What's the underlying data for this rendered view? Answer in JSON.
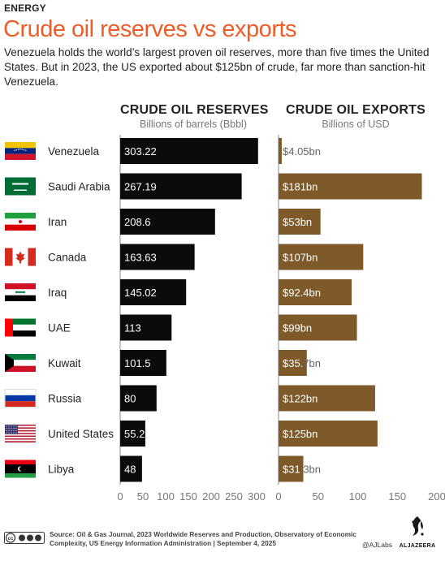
{
  "header": {
    "kicker": "ENERGY",
    "title": "Crude oil reserves vs exports",
    "subtitle": "Venezuela holds the world’s largest proven oil reserves, more than five times the United States. But in 2023, the US exported about $125bn of crude, far more than sanction-hit Venezuela."
  },
  "colors": {
    "title": "#ee5d28",
    "reserves_bar": "#0b0b0b",
    "exports_bar": "#7e5a2a",
    "axis": "#8a8a8a"
  },
  "chart_data": [
    {
      "type": "bar",
      "orientation": "horizontal",
      "title": "CRUDE OIL RESERVES",
      "subtitle": "Billions of barrels (Bbbl)",
      "categories": [
        "Venezuela",
        "Saudi Arabia",
        "Iran",
        "Canada",
        "Iraq",
        "UAE",
        "Kuwait",
        "Russia",
        "United States",
        "Libya"
      ],
      "values": [
        303.22,
        267.19,
        208.6,
        163.63,
        145.02,
        113,
        101.5,
        80,
        55.2,
        48
      ],
      "labels": [
        "303.22",
        "267.19",
        "208.6",
        "163.63",
        "145.02",
        "113",
        "101.5",
        "80",
        "55.2",
        "48"
      ],
      "xlim": [
        0,
        300
      ],
      "ticks": [
        0,
        50,
        100,
        150,
        200,
        250,
        300
      ],
      "tick_labels": [
        "0",
        "50",
        "100",
        "150",
        "200",
        "250",
        "300"
      ]
    },
    {
      "type": "bar",
      "orientation": "horizontal",
      "title": "CRUDE OIL EXPORTS",
      "subtitle": "Billions of USD",
      "categories": [
        "Venezuela",
        "Saudi Arabia",
        "Iran",
        "Canada",
        "Iraq",
        "UAE",
        "Kuwait",
        "Russia",
        "United States",
        "Libya"
      ],
      "values": [
        4.05,
        181,
        53,
        107,
        92.4,
        99,
        35.7,
        122,
        125,
        31.3
      ],
      "labels": [
        "$4.05bn",
        "$181bn",
        "$53bn",
        "$107bn",
        "$92.4bn",
        "$99bn",
        "$35.7bn",
        "$122bn",
        "$125bn",
        "$31.3bn"
      ],
      "xlim": [
        0,
        200
      ],
      "ticks": [
        0,
        50,
        100,
        150,
        200
      ],
      "tick_labels": [
        "0",
        "50",
        "100",
        "150",
        "200"
      ]
    }
  ],
  "flags": [
    "venezuela-flag",
    "saudi-arabia-flag",
    "iran-flag",
    "canada-flag",
    "iraq-flag",
    "uae-flag",
    "kuwait-flag",
    "russia-flag",
    "united-states-flag",
    "libya-flag"
  ],
  "footer": {
    "source": "Source: Oil & Gas Journal, 2023 Worldwide Reserves and Production, Observatory of Economic Complexity, US Energy Information Administration  |  September 4, 2025",
    "handle": "@AJLabs",
    "brand": "ALJAZEERA",
    "license": "cc"
  }
}
